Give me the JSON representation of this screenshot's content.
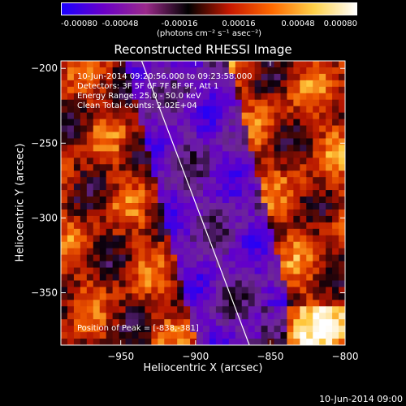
{
  "colorbar": {
    "tick_labels": [
      "-0.00080",
      "-0.00048",
      "-0.00016",
      "0.00016",
      "0.00048",
      "0.00080"
    ],
    "units": "(photons cm⁻² s⁻¹ asec⁻²)",
    "colors": [
      "#1a00ff",
      "#6b00c7",
      "#9a2a8a",
      "#000000",
      "#c81800",
      "#ff6a00",
      "#ffd24a",
      "#ffffff"
    ]
  },
  "chart_data": {
    "type": "heatmap",
    "title": "Reconstructed RHESSI Image",
    "xlabel": "Heliocentric X (arcsec)",
    "ylabel": "Heliocentric Y (arcsec)",
    "xlim": [
      -990,
      -800
    ],
    "ylim": [
      -385,
      -195
    ],
    "xticks": [
      -950,
      -900,
      -850,
      -800
    ],
    "yticks": [
      -200,
      -250,
      -300,
      -350
    ],
    "xtick_labels": [
      "−950",
      "−900",
      "−850",
      "−800"
    ],
    "ytick_labels": [
      "−200",
      "−250",
      "−300",
      "−350"
    ],
    "colorbar_range": [
      -0.0008,
      0.0008
    ],
    "limb_line": {
      "x": [
        -936,
        -864
      ],
      "y": [
        -195,
        -385
      ]
    },
    "annotations": [
      "10-Jun-2014 09:20:56.000 to 09:23:58.000",
      "Detectors: 3F 5F 6F 7F 8F 9F, Att 1",
      "Energy Range: 25.0 - 50.0 keV",
      "Clean     Total counts: 2.02E+04"
    ],
    "peak_label": "Position of Peak = [-838,-381]",
    "peak_position": [
      -838,
      -381
    ]
  },
  "footer": {
    "timestamp": "10-Jun-2014 09:00"
  }
}
